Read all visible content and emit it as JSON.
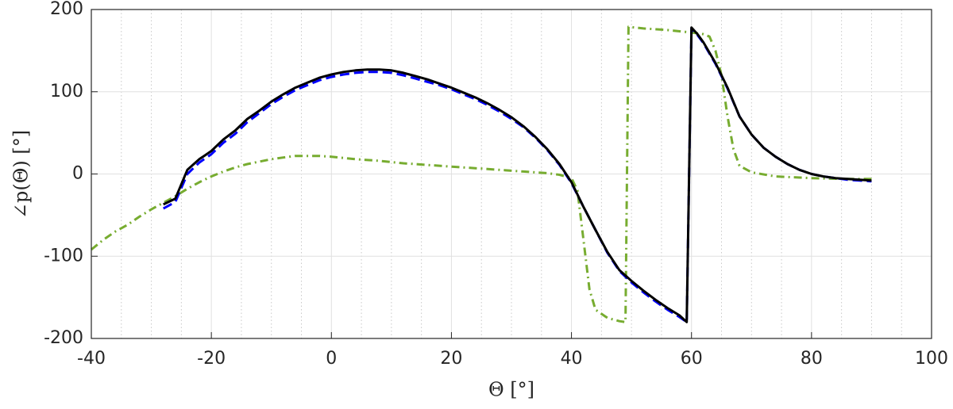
{
  "chart_data": {
    "type": "line",
    "xlabel": "Θ [°]",
    "ylabel": "∠p(Θ) [°]",
    "xlim": [
      -40,
      100
    ],
    "ylim": [
      -200,
      200
    ],
    "xticks": [
      -40,
      -20,
      0,
      20,
      40,
      60,
      80,
      100
    ],
    "yticks": [
      -200,
      -100,
      0,
      100,
      200
    ],
    "grid": true,
    "series": [
      {
        "color": "#77ac30",
        "style": "dashdot",
        "x": [
          -40,
          -38,
          -36,
          -34,
          -32,
          -30,
          -28,
          -26,
          -24,
          -22,
          -20,
          -18,
          -16,
          -14,
          -12,
          -10,
          -8,
          -6,
          -4,
          -2,
          0,
          4,
          8,
          12,
          16,
          20,
          24,
          28,
          32,
          36,
          38,
          40,
          41,
          42,
          43,
          44,
          46,
          48,
          49,
          49.5,
          52,
          56,
          60,
          62,
          63,
          64,
          65,
          66,
          67,
          68,
          70,
          74,
          80,
          85,
          90
        ],
        "values": [
          -92,
          -80,
          -70,
          -62,
          -52,
          -43,
          -35,
          -27,
          -18,
          -10,
          -3,
          3,
          8,
          12,
          15,
          18,
          20,
          22,
          22,
          22,
          21,
          18,
          16,
          13,
          11,
          9,
          7,
          5,
          3,
          1,
          -1,
          -5,
          -20,
          -80,
          -140,
          -165,
          -175,
          -179,
          -180,
          179,
          177,
          175,
          172,
          170,
          167,
          150,
          120,
          70,
          30,
          10,
          2,
          -3,
          -5,
          -6,
          -6
        ]
      },
      {
        "color": "#0000ff",
        "style": "dashed",
        "x": [
          -28,
          -26,
          -24,
          -22,
          -20,
          -18,
          -16,
          -14,
          -12,
          -10,
          -8,
          -6,
          -4,
          -2,
          0,
          2,
          4,
          6,
          8,
          10,
          12,
          14,
          16,
          18,
          20,
          22,
          24,
          26,
          28,
          30,
          32,
          34,
          36,
          38,
          40,
          42,
          44,
          46,
          48,
          50,
          52,
          54,
          56,
          58,
          59.2,
          60,
          61,
          62,
          64,
          66,
          68,
          70,
          72,
          74,
          76,
          78,
          80,
          82,
          84,
          86,
          88,
          90
        ],
        "values": [
          -42,
          -34,
          0,
          14,
          24,
          38,
          49,
          63,
          74,
          85,
          94,
          102,
          108,
          114,
          118,
          121,
          123,
          124,
          124,
          123,
          120,
          116,
          112,
          108,
          103,
          97,
          91,
          84,
          76,
          67,
          57,
          44,
          29,
          11,
          -11,
          -40,
          -68,
          -96,
          -118,
          -132,
          -144,
          -155,
          -165,
          -174,
          -180,
          177,
          169,
          159,
          134,
          104,
          70,
          48,
          32,
          21,
          12,
          5,
          0,
          -3,
          -5,
          -7,
          -8,
          -9
        ]
      },
      {
        "color": "#000000",
        "style": "solid",
        "x": [
          -28,
          -26,
          -24,
          -22,
          -20,
          -18,
          -16,
          -14,
          -12,
          -10,
          -8,
          -6,
          -4,
          -2,
          0,
          2,
          4,
          6,
          8,
          10,
          12,
          14,
          16,
          18,
          20,
          22,
          24,
          26,
          28,
          30,
          32,
          34,
          36,
          38,
          40,
          42,
          44,
          46,
          48,
          50,
          52,
          54,
          56,
          58,
          59.2,
          60,
          61,
          62,
          64,
          66,
          68,
          70,
          72,
          74,
          76,
          78,
          80,
          82,
          84,
          86,
          88,
          90
        ],
        "values": [
          -37,
          -30,
          5,
          18,
          28,
          42,
          53,
          67,
          77,
          88,
          97,
          105,
          111,
          117,
          121,
          124,
          126,
          127,
          127,
          126,
          123,
          119,
          115,
          110,
          105,
          99,
          93,
          86,
          78,
          69,
          58,
          45,
          30,
          12,
          -10,
          -40,
          -68,
          -95,
          -117,
          -130,
          -142,
          -153,
          -163,
          -172,
          -180,
          178,
          170,
          160,
          135,
          105,
          70,
          48,
          32,
          21,
          12,
          5,
          0,
          -3,
          -5,
          -6,
          -7,
          -8
        ]
      }
    ]
  }
}
